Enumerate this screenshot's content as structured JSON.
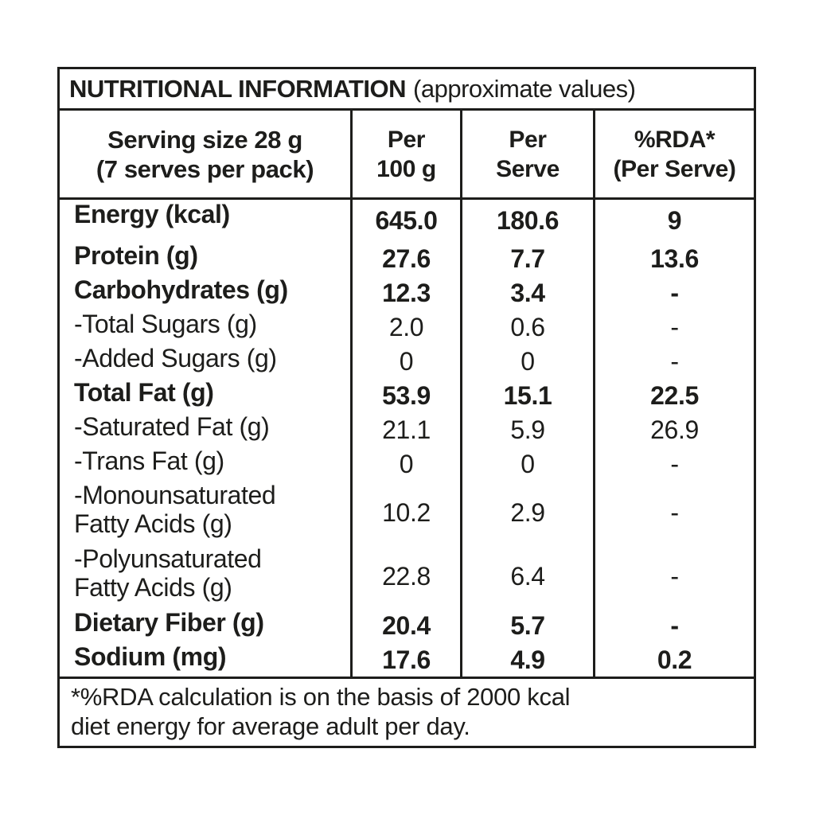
{
  "title": {
    "main": "NUTRITIONAL INFORMATION",
    "note": "(approximate values)"
  },
  "header": {
    "serving": {
      "line1": "Serving size 28 g",
      "line2": "(7 serves per pack)"
    },
    "per100": {
      "line1": "Per",
      "line2": "100 g"
    },
    "perServe": {
      "line1": "Per",
      "line2": "Serve"
    },
    "rda": {
      "line1": "%RDA*",
      "line2": "(Per Serve)"
    }
  },
  "rows": [
    {
      "label": "Energy (kcal)",
      "per100": "645.0",
      "perServe": "180.6",
      "rda": "9"
    },
    {
      "label": "Protein (g)",
      "per100": "27.6",
      "perServe": "7.7",
      "rda": "13.6"
    },
    {
      "label": "Carbohydrates (g)",
      "per100": "12.3",
      "perServe": "3.4",
      "rda": "-"
    },
    {
      "label": "-Total Sugars (g)",
      "per100": "2.0",
      "perServe": "0.6",
      "rda": "-"
    },
    {
      "label": "-Added Sugars (g)",
      "per100": "0",
      "perServe": "0",
      "rda": "-"
    },
    {
      "label": "Total Fat (g)",
      "per100": "53.9",
      "perServe": "15.1",
      "rda": "22.5"
    },
    {
      "label": "-Saturated Fat (g)",
      "per100": "21.1",
      "perServe": "5.9",
      "rda": "26.9"
    },
    {
      "label": "-Trans Fat (g)",
      "per100": "0",
      "perServe": "0",
      "rda": "-"
    },
    {
      "label": "-Monounsaturated",
      "label2": "Fatty Acids (g)",
      "per100": "10.2",
      "perServe": "2.9",
      "rda": "-"
    },
    {
      "label": "-Polyunsaturated",
      "label2": "Fatty Acids (g)",
      "per100": "22.8",
      "perServe": "6.4",
      "rda": "-"
    },
    {
      "label": "Dietary Fiber (g)",
      "per100": "20.4",
      "perServe": "5.7",
      "rda": "-"
    },
    {
      "label": "Sodium (mg)",
      "per100": "17.6",
      "perServe": "4.9",
      "rda": "0.2"
    }
  ],
  "footer": {
    "line1": "*%RDA calculation is on the basis of 2000 kcal",
    "line2": "diet energy for average adult per day."
  },
  "colors": {
    "text": "#1d1d1b",
    "border": "#1d1d1b",
    "background": "#ffffff"
  }
}
